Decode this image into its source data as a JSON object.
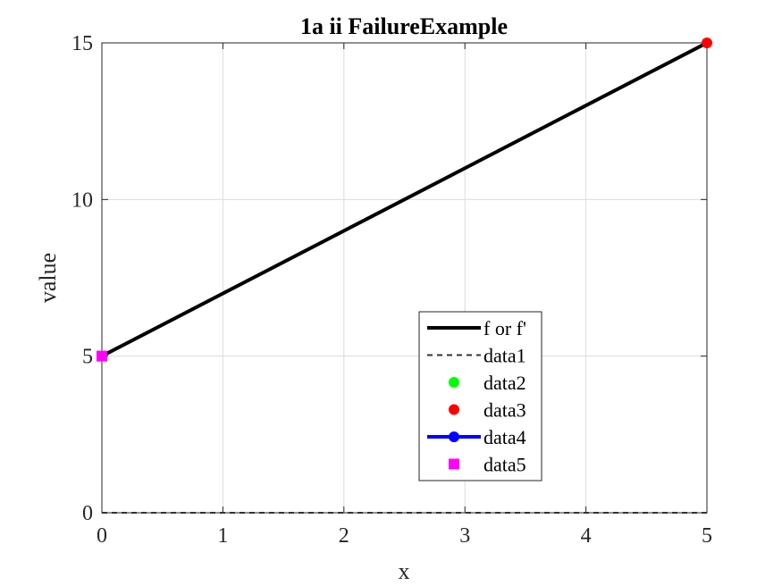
{
  "chart_data": {
    "type": "line",
    "title": "1a ii FailureExample",
    "xlabel": "x",
    "ylabel": "value",
    "xlim": [
      0,
      5
    ],
    "ylim": [
      0,
      15
    ],
    "grid": true,
    "legend_position": "bottom-center",
    "x_ticks": [
      {
        "value": 0,
        "label": "0"
      },
      {
        "value": 1,
        "label": "1"
      },
      {
        "value": 2,
        "label": "2"
      },
      {
        "value": 3,
        "label": "3"
      },
      {
        "value": 4,
        "label": "4"
      },
      {
        "value": 5,
        "label": "5"
      }
    ],
    "y_ticks": [
      {
        "value": 0,
        "label": "0"
      },
      {
        "value": 5,
        "label": "5"
      },
      {
        "value": 10,
        "label": "10"
      },
      {
        "value": 15,
        "label": "15"
      }
    ],
    "series": [
      {
        "name": "f or f'",
        "style": "solid-thick",
        "color": "#000000",
        "x": [
          0,
          5
        ],
        "y": [
          5,
          15
        ]
      },
      {
        "name": "data1",
        "style": "dashed",
        "color": "#333333",
        "x": [
          0,
          5
        ],
        "y": [
          0,
          0
        ]
      },
      {
        "name": "data2",
        "style": "marker",
        "color": "#00ff00",
        "x": [],
        "y": []
      },
      {
        "name": "data3",
        "style": "marker",
        "color": "#ff0000",
        "x": [
          5
        ],
        "y": [
          15
        ]
      },
      {
        "name": "data4",
        "style": "line-marker",
        "color": "#0000ff",
        "x": [],
        "y": []
      },
      {
        "name": "data5",
        "style": "square-marker",
        "color": "#ff00ff",
        "x": [
          0
        ],
        "y": [
          5
        ]
      }
    ]
  }
}
